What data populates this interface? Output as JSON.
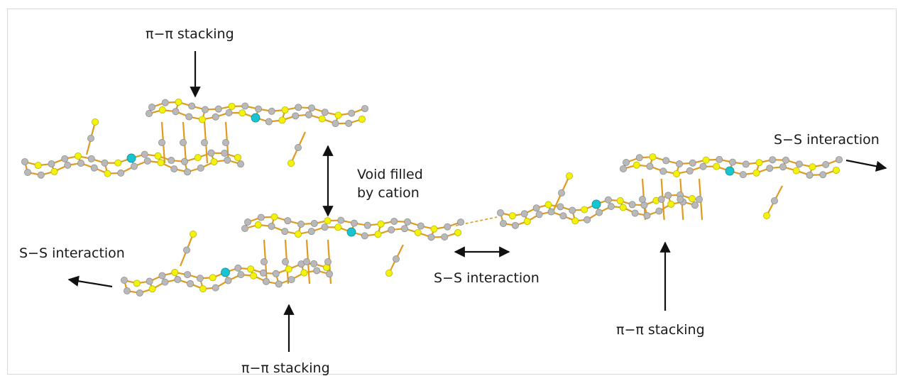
{
  "labels": {
    "pi_stacking_top": "π−π stacking",
    "void_line1": "Void filled",
    "void_line2": "by cation",
    "ss_right": "S−S interaction",
    "ss_left": "S−S interaction",
    "ss_middle": "S−S interaction",
    "pi_stacking_right": "π−π stacking",
    "pi_stacking_bottom": "π−π stacking"
  },
  "atom_colors": {
    "carbon": "#b9b9b9",
    "sulfur": "#f2f20c",
    "metal": "#17c4d0",
    "bond": "#e09a1c"
  }
}
